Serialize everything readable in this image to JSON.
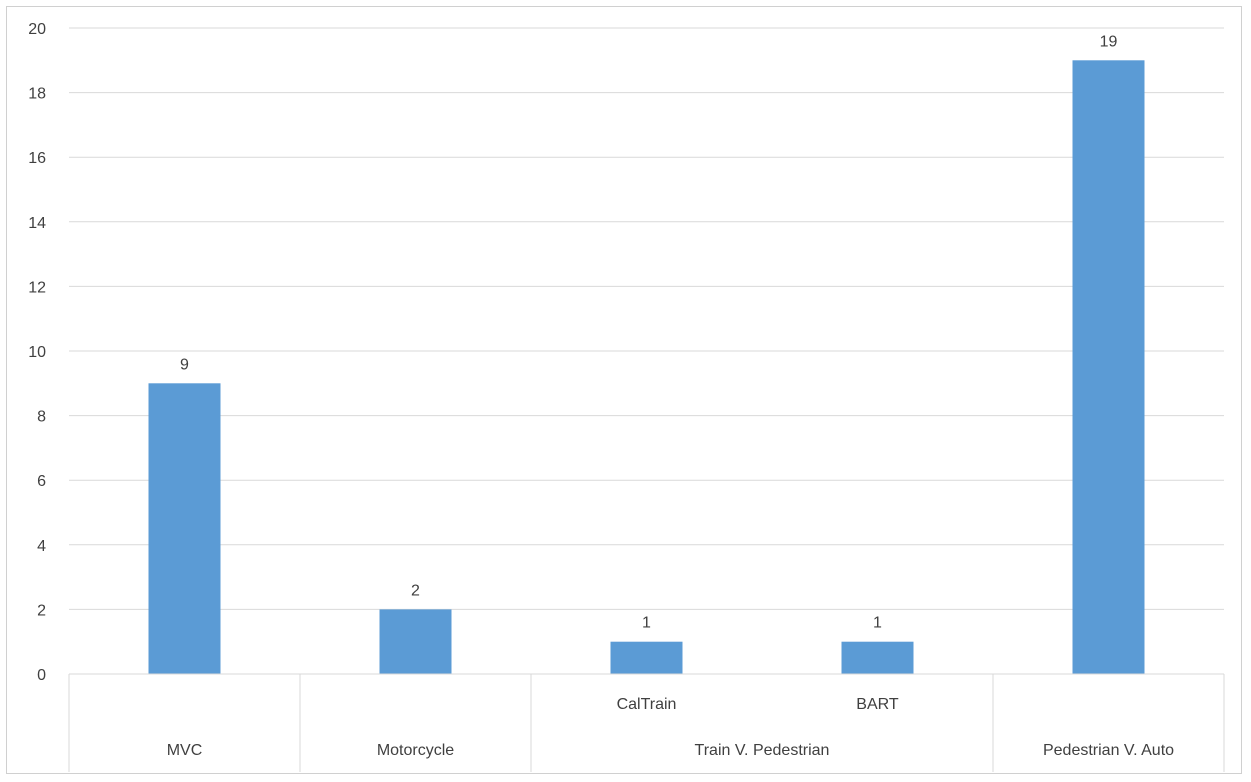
{
  "chart_data": {
    "type": "bar",
    "title": "",
    "xlabel": "",
    "ylabel": "",
    "ylim": [
      0,
      20
    ],
    "ytick_step": 2,
    "yticks": [
      "0",
      "2",
      "4",
      "6",
      "8",
      "10",
      "12",
      "14",
      "16",
      "18",
      "20"
    ],
    "grid": true,
    "legend": "none",
    "bar_color": "#5b9bd5",
    "grid_color": "#d9d9d9",
    "categories": [
      "MVC",
      "Motorcycle",
      "CalTrain",
      "BART",
      "Pedestrian V. Auto"
    ],
    "category_groups": [
      {
        "label": "MVC",
        "subs": [
          {
            "label": "",
            "value": 9
          }
        ]
      },
      {
        "label": "Motorcycle",
        "subs": [
          {
            "label": "",
            "value": 2
          }
        ]
      },
      {
        "label": "Train V. Pedestrian",
        "subs": [
          {
            "label": "CalTrain",
            "value": 1
          },
          {
            "label": "BART",
            "value": 1
          }
        ]
      },
      {
        "label": "Pedestrian V. Auto",
        "subs": [
          {
            "label": "",
            "value": 19
          }
        ]
      }
    ],
    "values": [
      9,
      2,
      1,
      1,
      19
    ],
    "data_labels": [
      "9",
      "2",
      "1",
      "1",
      "19"
    ]
  }
}
